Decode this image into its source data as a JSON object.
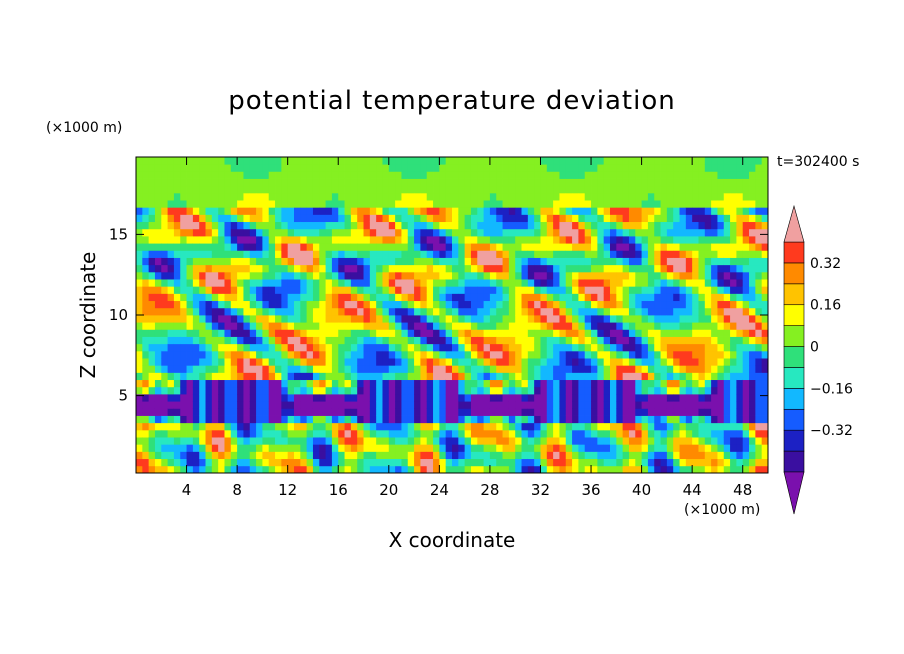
{
  "chart_data": {
    "type": "heatmap",
    "title": "potential temperature deviation",
    "xlabel": "X coordinate",
    "ylabel": "Z coordinate",
    "x_unit": "(×1000 m)",
    "z_unit": "(×1000 m)",
    "time_label": "t=302400 s",
    "xlim": [
      0,
      50
    ],
    "ylim": [
      0.2,
      19.8
    ],
    "xticks": [
      4,
      8,
      12,
      16,
      20,
      24,
      28,
      32,
      36,
      40,
      44,
      48
    ],
    "yticks": [
      5,
      10,
      15
    ],
    "colorbar": {
      "levels": [
        -0.48,
        -0.4,
        -0.32,
        -0.24,
        -0.16,
        -0.08,
        0,
        0.08,
        0.16,
        0.24,
        0.32,
        0.4
      ],
      "tick_labels": [
        "0.32",
        "0.16",
        "0",
        "−0.16",
        "−0.32"
      ],
      "tick_values": [
        0.32,
        0.16,
        0,
        -0.16,
        -0.32
      ],
      "extend": "both",
      "colors": [
        "#7a10ad",
        "#3a0fa0",
        "#1c21c4",
        "#155cff",
        "#12b8ff",
        "#27e8c0",
        "#2fe07a",
        "#85f021",
        "#ffff00",
        "#ffc300",
        "#ff8a00",
        "#ff3a1e",
        "#f0a0a0"
      ]
    }
  }
}
